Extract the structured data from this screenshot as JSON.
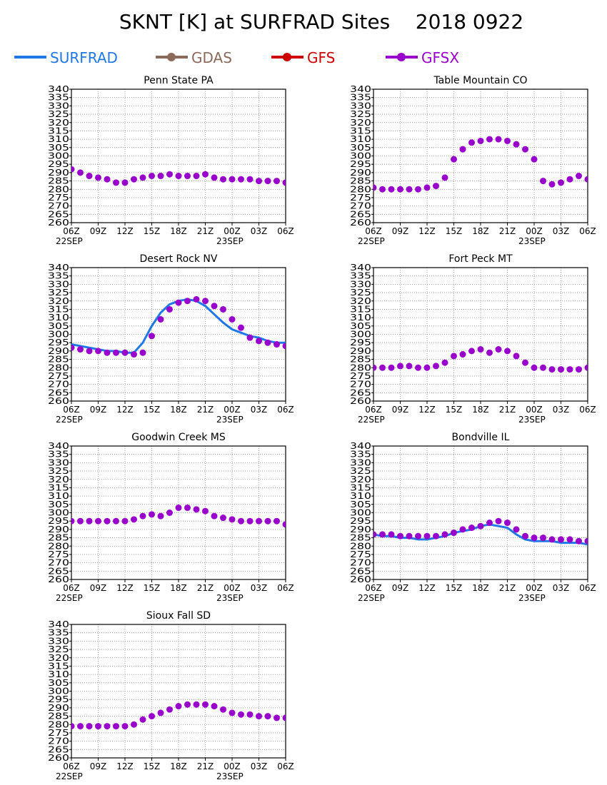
{
  "title": "SKNT [K] at SURFRAD Sites    2018 0922",
  "legend": [
    {
      "name": "SURFRAD",
      "color": "#1f77e8",
      "marker": false
    },
    {
      "name": "GDAS",
      "color": "#8a6a5a",
      "marker": true
    },
    {
      "name": "GFS",
      "color": "#cc0000",
      "marker": true
    },
    {
      "name": "GFSX",
      "color": "#9900cc",
      "marker": true
    }
  ],
  "axes": {
    "y_range": [
      260,
      340
    ],
    "y_ticks": [
      260,
      265,
      270,
      275,
      280,
      285,
      290,
      295,
      300,
      305,
      310,
      315,
      320,
      325,
      330,
      335,
      340
    ],
    "x_range": [
      0,
      24
    ],
    "x_tick_labels": [
      "06Z",
      "09Z",
      "12Z",
      "15Z",
      "18Z",
      "21Z",
      "00Z",
      "03Z",
      "06Z"
    ],
    "date_labels": [
      "22SEP",
      "23SEP"
    ],
    "grid": true
  },
  "chart_data": [
    {
      "type": "line",
      "title": "Penn State PA",
      "x_hours_after_06Z": [
        0,
        1,
        2,
        3,
        4,
        5,
        6,
        7,
        8,
        9,
        10,
        11,
        12,
        13,
        14,
        15,
        16,
        17,
        18,
        19,
        20,
        21,
        22,
        23,
        24
      ],
      "series": [
        {
          "name": "GFSX",
          "values": [
            292,
            290,
            288,
            287,
            286,
            284,
            284,
            286,
            287,
            288,
            288,
            289,
            288,
            288,
            288,
            289,
            287,
            286,
            286,
            286,
            286,
            285,
            285,
            285,
            284
          ]
        }
      ]
    },
    {
      "type": "line",
      "title": "Table Mountain CO",
      "x_hours_after_06Z": [
        0,
        1,
        2,
        3,
        4,
        5,
        6,
        7,
        8,
        9,
        10,
        11,
        12,
        13,
        14,
        15,
        16,
        17,
        18,
        19,
        20,
        21,
        22,
        23,
        24
      ],
      "series": [
        {
          "name": "GFSX",
          "values": [
            281,
            280,
            280,
            280,
            280,
            280,
            281,
            282,
            287,
            298,
            304,
            308,
            309,
            310,
            310,
            309,
            307,
            304,
            298,
            285,
            283,
            284,
            286,
            288,
            286
          ]
        }
      ]
    },
    {
      "type": "line",
      "title": "Desert Rock NV",
      "x_hours_after_06Z": [
        0,
        1,
        2,
        3,
        4,
        5,
        6,
        7,
        8,
        9,
        10,
        11,
        12,
        13,
        14,
        15,
        16,
        17,
        18,
        19,
        20,
        21,
        22,
        23,
        24
      ],
      "series": [
        {
          "name": "SURFRAD",
          "values": [
            294,
            293,
            292,
            291,
            290,
            290,
            289,
            289,
            295,
            305,
            313,
            318,
            320,
            321,
            320,
            317,
            312,
            307,
            303,
            301,
            299,
            298,
            296,
            295,
            295
          ]
        },
        {
          "name": "GFSX",
          "values": [
            292,
            291,
            290,
            290,
            289,
            289,
            289,
            288,
            289,
            299,
            309,
            315,
            319,
            320,
            321,
            320,
            317,
            315,
            309,
            304,
            298,
            296,
            295,
            294,
            293
          ]
        }
      ]
    },
    {
      "type": "line",
      "title": "Fort Peck MT",
      "x_hours_after_06Z": [
        0,
        1,
        2,
        3,
        4,
        5,
        6,
        7,
        8,
        9,
        10,
        11,
        12,
        13,
        14,
        15,
        16,
        17,
        18,
        19,
        20,
        21,
        22,
        23,
        24
      ],
      "series": [
        {
          "name": "GFSX",
          "values": [
            280,
            280,
            280,
            281,
            281,
            280,
            280,
            281,
            283,
            287,
            288,
            290,
            291,
            289,
            291,
            290,
            287,
            283,
            280,
            280,
            279,
            279,
            279,
            279,
            280
          ]
        }
      ]
    },
    {
      "type": "line",
      "title": "Goodwin Creek MS",
      "x_hours_after_06Z": [
        0,
        1,
        2,
        3,
        4,
        5,
        6,
        7,
        8,
        9,
        10,
        11,
        12,
        13,
        14,
        15,
        16,
        17,
        18,
        19,
        20,
        21,
        22,
        23,
        24
      ],
      "series": [
        {
          "name": "GFSX",
          "values": [
            295,
            295,
            295,
            295,
            295,
            295,
            295,
            296,
            298,
            299,
            298,
            300,
            303,
            303,
            302,
            301,
            298,
            297,
            296,
            295,
            295,
            295,
            295,
            295,
            293
          ]
        }
      ]
    },
    {
      "type": "line",
      "title": "Bondville IL",
      "x_hours_after_06Z": [
        0,
        1,
        2,
        3,
        4,
        5,
        6,
        7,
        8,
        9,
        10,
        11,
        12,
        13,
        14,
        15,
        16,
        17,
        18,
        19,
        20,
        21,
        22,
        23,
        24
      ],
      "series": [
        {
          "name": "SURFRAD",
          "values": [
            287,
            286,
            286,
            285,
            285,
            284,
            284,
            285,
            286,
            288,
            289,
            290,
            292,
            293,
            292,
            291,
            287,
            284,
            283,
            283,
            283,
            282,
            282,
            282,
            281
          ]
        },
        {
          "name": "GFSX",
          "values": [
            287,
            287,
            287,
            286,
            286,
            286,
            286,
            286,
            287,
            288,
            290,
            291,
            292,
            294,
            295,
            294,
            290,
            286,
            285,
            285,
            284,
            284,
            284,
            283,
            283
          ]
        }
      ]
    },
    {
      "type": "line",
      "title": "Sioux Fall SD",
      "x_hours_after_06Z": [
        0,
        1,
        2,
        3,
        4,
        5,
        6,
        7,
        8,
        9,
        10,
        11,
        12,
        13,
        14,
        15,
        16,
        17,
        18,
        19,
        20,
        21,
        22,
        23,
        24
      ],
      "series": [
        {
          "name": "GFSX",
          "values": [
            279,
            279,
            279,
            279,
            279,
            279,
            279,
            280,
            283,
            285,
            287,
            289,
            291,
            292,
            292,
            292,
            291,
            289,
            287,
            286,
            286,
            285,
            285,
            284,
            284
          ]
        }
      ]
    }
  ]
}
